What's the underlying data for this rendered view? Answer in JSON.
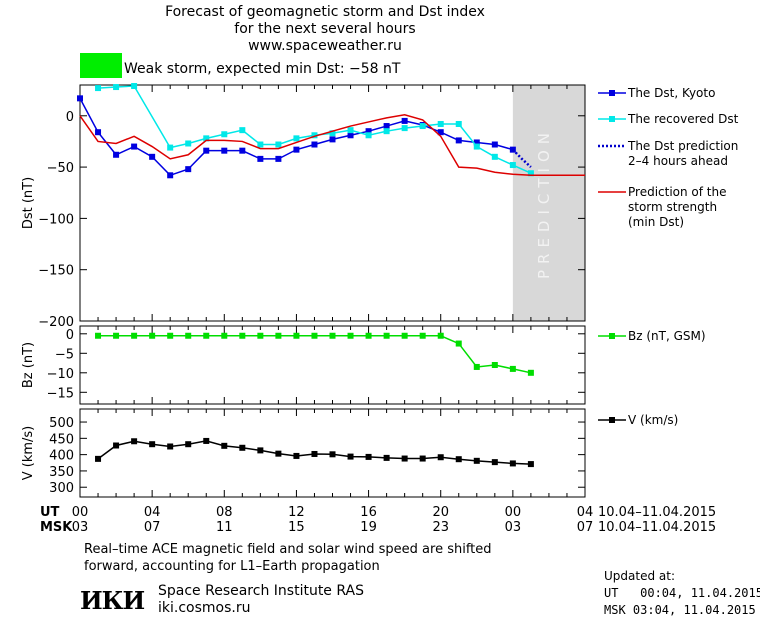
{
  "header": {
    "title_lines": [
      "Forecast of geomagnetic storm and Dst index",
      "for the next several hours",
      "www.spaceweather.ru"
    ],
    "storm_text": "Weak storm, expected min Dst: −58 nT",
    "storm_color": "#00ee00"
  },
  "time_axis": {
    "ut_label": "UT",
    "msk_label": "MSK",
    "ut_ticks": [
      "00",
      "04",
      "08",
      "12",
      "16",
      "20",
      "00",
      "04"
    ],
    "msk_ticks": [
      "03",
      "07",
      "11",
      "15",
      "19",
      "23",
      "03",
      "07"
    ],
    "date_range": "10.04–11.04.2015"
  },
  "footer": {
    "note_line1": "Real–time ACE magnetic field and solar wind speed are shifted",
    "note_line2": "forward, accounting for L1–Earth propagation",
    "logo_text": "ИКИ",
    "institute": "Space Research Institute RAS",
    "site": "iki.cosmos.ru",
    "updated_label": "Updated at:",
    "updated_ut": "UT   00:04, 11.04.2015",
    "updated_msk": "MSK 03:04, 11.04.2015"
  },
  "chart_data": [
    {
      "type": "line",
      "ylabel": "Dst (nT)",
      "ylim": [
        -200,
        30
      ],
      "yticks": [
        0,
        -50,
        -100,
        -150,
        -200
      ],
      "xlim": [
        0,
        28
      ],
      "prediction_band": {
        "x": [
          24,
          28
        ],
        "label": "PREDICTION",
        "color": "#d8d8d8"
      },
      "series": [
        {
          "name": "The Dst, Kyoto",
          "color": "#0000e0",
          "marker": "square",
          "x": [
            0,
            1,
            2,
            3,
            4,
            5,
            6,
            7,
            8,
            9,
            10,
            11,
            12,
            13,
            14,
            15,
            16,
            17,
            18,
            19,
            20,
            21,
            22,
            23,
            24
          ],
          "values": [
            17,
            -16,
            -38,
            -30,
            -40,
            -58,
            -52,
            -34,
            -34,
            -34,
            -42,
            -42,
            -33,
            -28,
            -23,
            -19,
            -15,
            -10,
            -5,
            -9,
            -16,
            -24,
            -26,
            -28,
            -33
          ]
        },
        {
          "name": "The recovered Dst",
          "color": "#00e8e8",
          "marker": "square",
          "x": [
            1,
            2,
            3,
            5,
            6,
            7,
            8,
            9,
            10,
            11,
            12,
            13,
            14,
            15,
            16,
            17,
            18,
            19,
            20,
            21,
            22,
            23,
            24,
            25
          ],
          "values": [
            27,
            28,
            29,
            -31,
            -27,
            -22,
            -18,
            -14,
            -28,
            -28,
            -22,
            -19,
            -17,
            -14,
            -19,
            -15,
            -12,
            -10,
            -8,
            -8,
            -30,
            -40,
            -48,
            -56
          ]
        },
        {
          "name": "The Dst prediction",
          "name2": "2–4 hours ahead",
          "color": "#0000cc",
          "style": "dotted",
          "x": [
            24,
            24.5,
            25
          ],
          "values": [
            -33,
            -42,
            -50
          ]
        },
        {
          "name": "Prediction of the",
          "name2": "storm strength",
          "name3": "(min Dst)",
          "color": "#dd0000",
          "x": [
            0,
            1,
            2,
            3,
            4,
            5,
            6,
            7,
            8,
            9,
            10,
            11,
            12,
            13,
            14,
            15,
            16,
            17,
            18,
            19,
            20,
            21,
            22,
            23,
            24,
            25,
            26,
            27,
            28
          ],
          "values": [
            0,
            -25,
            -27,
            -20,
            -30,
            -42,
            -38,
            -24,
            -24,
            -25,
            -32,
            -32,
            -26,
            -20,
            -15,
            -10,
            -6,
            -2,
            1,
            -4,
            -20,
            -50,
            -51,
            -55,
            -57,
            -58,
            -58,
            -58,
            -58
          ]
        }
      ]
    },
    {
      "type": "line",
      "ylabel": "Bz (nT)",
      "ylim": [
        -18,
        2
      ],
      "yticks": [
        0,
        -5,
        -10,
        -15
      ],
      "xlim": [
        0,
        28
      ],
      "series": [
        {
          "name": "Bz (nT, GSM)",
          "color": "#00dd00",
          "marker": "square",
          "x": [
            1,
            2,
            3,
            4,
            5,
            6,
            7,
            8,
            9,
            10,
            11,
            12,
            13,
            14,
            15,
            16,
            17,
            18,
            19,
            20,
            21,
            22,
            23,
            24,
            25
          ],
          "values": [
            -0.5,
            -0.5,
            -0.5,
            -0.5,
            -0.5,
            -0.5,
            -0.5,
            -0.5,
            -0.5,
            -0.5,
            -0.5,
            -0.5,
            -0.5,
            -0.5,
            -0.5,
            -0.5,
            -0.5,
            -0.5,
            -0.5,
            -0.5,
            -2.5,
            -8.5,
            -8,
            -9,
            -10
          ]
        }
      ]
    },
    {
      "type": "line",
      "ylabel": "V (km/s)",
      "ylim": [
        270,
        540
      ],
      "yticks": [
        500,
        450,
        400,
        350,
        300
      ],
      "xlim": [
        0,
        28
      ],
      "series": [
        {
          "name": "V (km/s)",
          "color": "#000000",
          "marker": "square",
          "x": [
            1,
            2,
            3,
            4,
            5,
            6,
            7,
            8,
            9,
            10,
            11,
            12,
            13,
            14,
            15,
            16,
            17,
            18,
            19,
            20,
            21,
            22,
            23,
            24,
            25
          ],
          "values": [
            387,
            428,
            441,
            432,
            425,
            432,
            442,
            427,
            421,
            413,
            403,
            396,
            402,
            401,
            394,
            393,
            390,
            388,
            388,
            392,
            386,
            381,
            377,
            373,
            371
          ]
        }
      ]
    }
  ]
}
